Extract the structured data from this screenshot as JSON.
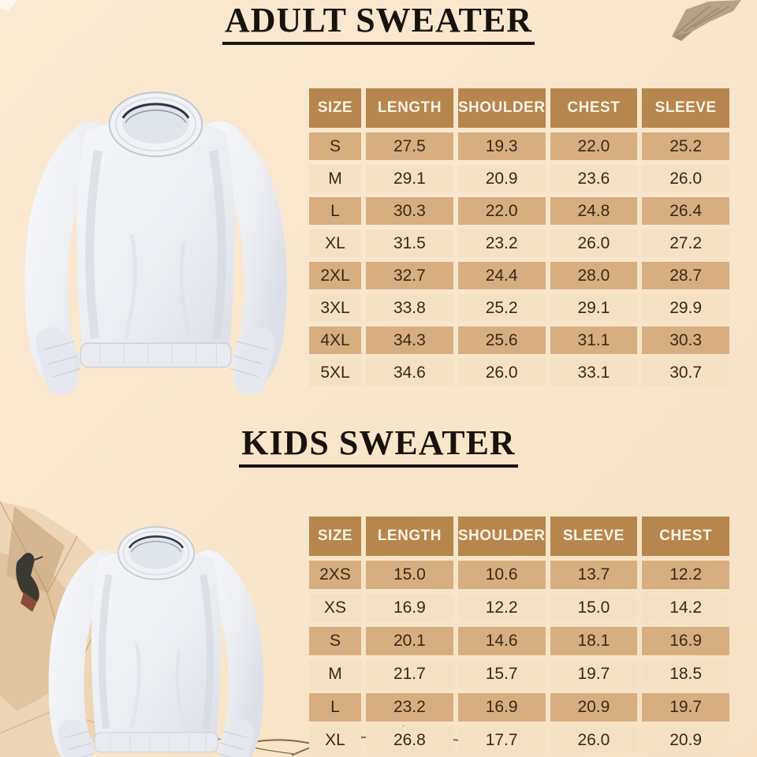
{
  "adult": {
    "title": "ADULT SWEATER",
    "table": {
      "headers": [
        "SIZE",
        "LENGTH",
        "SHOULDER",
        "CHEST",
        "SLEEVE"
      ],
      "rows": [
        [
          "S",
          "27.5",
          "19.3",
          "22.0",
          "25.2"
        ],
        [
          "M",
          "29.1",
          "20.9",
          "23.6",
          "26.0"
        ],
        [
          "L",
          "30.3",
          "22.0",
          "24.8",
          "26.4"
        ],
        [
          "XL",
          "31.5",
          "23.2",
          "26.0",
          "27.2"
        ],
        [
          "2XL",
          "32.7",
          "24.4",
          "28.0",
          "28.7"
        ],
        [
          "3XL",
          "33.8",
          "25.2",
          "29.1",
          "29.9"
        ],
        [
          "4XL",
          "34.3",
          "25.6",
          "31.1",
          "30.3"
        ],
        [
          "5XL",
          "34.6",
          "26.0",
          "33.1",
          "30.7"
        ]
      ]
    }
  },
  "kids": {
    "title": "KIDS SWEATER",
    "table": {
      "headers": [
        "SIZE",
        "LENGTH",
        "SHOULDER",
        "SLEEVE",
        "CHEST"
      ],
      "rows": [
        [
          "2XS",
          "15.0",
          "10.6",
          "13.7",
          "12.2"
        ],
        [
          "XS",
          "16.9",
          "12.2",
          "15.0",
          "14.2"
        ],
        [
          "S",
          "20.1",
          "14.6",
          "18.1",
          "16.9"
        ],
        [
          "M",
          "21.7",
          "15.7",
          "19.7",
          "18.5"
        ],
        [
          "L",
          "23.2",
          "16.9",
          "20.9",
          "19.7"
        ],
        [
          "XL",
          "26.8",
          "17.7",
          "26.0",
          "20.9"
        ]
      ]
    }
  },
  "colors": {
    "background": "#f8e6ca",
    "header_cell": "#b6864d",
    "row_dark": "#d8ae80",
    "row_light": "#f3e1c2",
    "header_text": "#faf4e8",
    "cell_text": "#3a2817",
    "title_text": "#17130e"
  },
  "decorations": {
    "top_right": "dried-leaf",
    "bottom_left": "crumpled-paper-with-bird",
    "bottom_center": "twigs"
  }
}
